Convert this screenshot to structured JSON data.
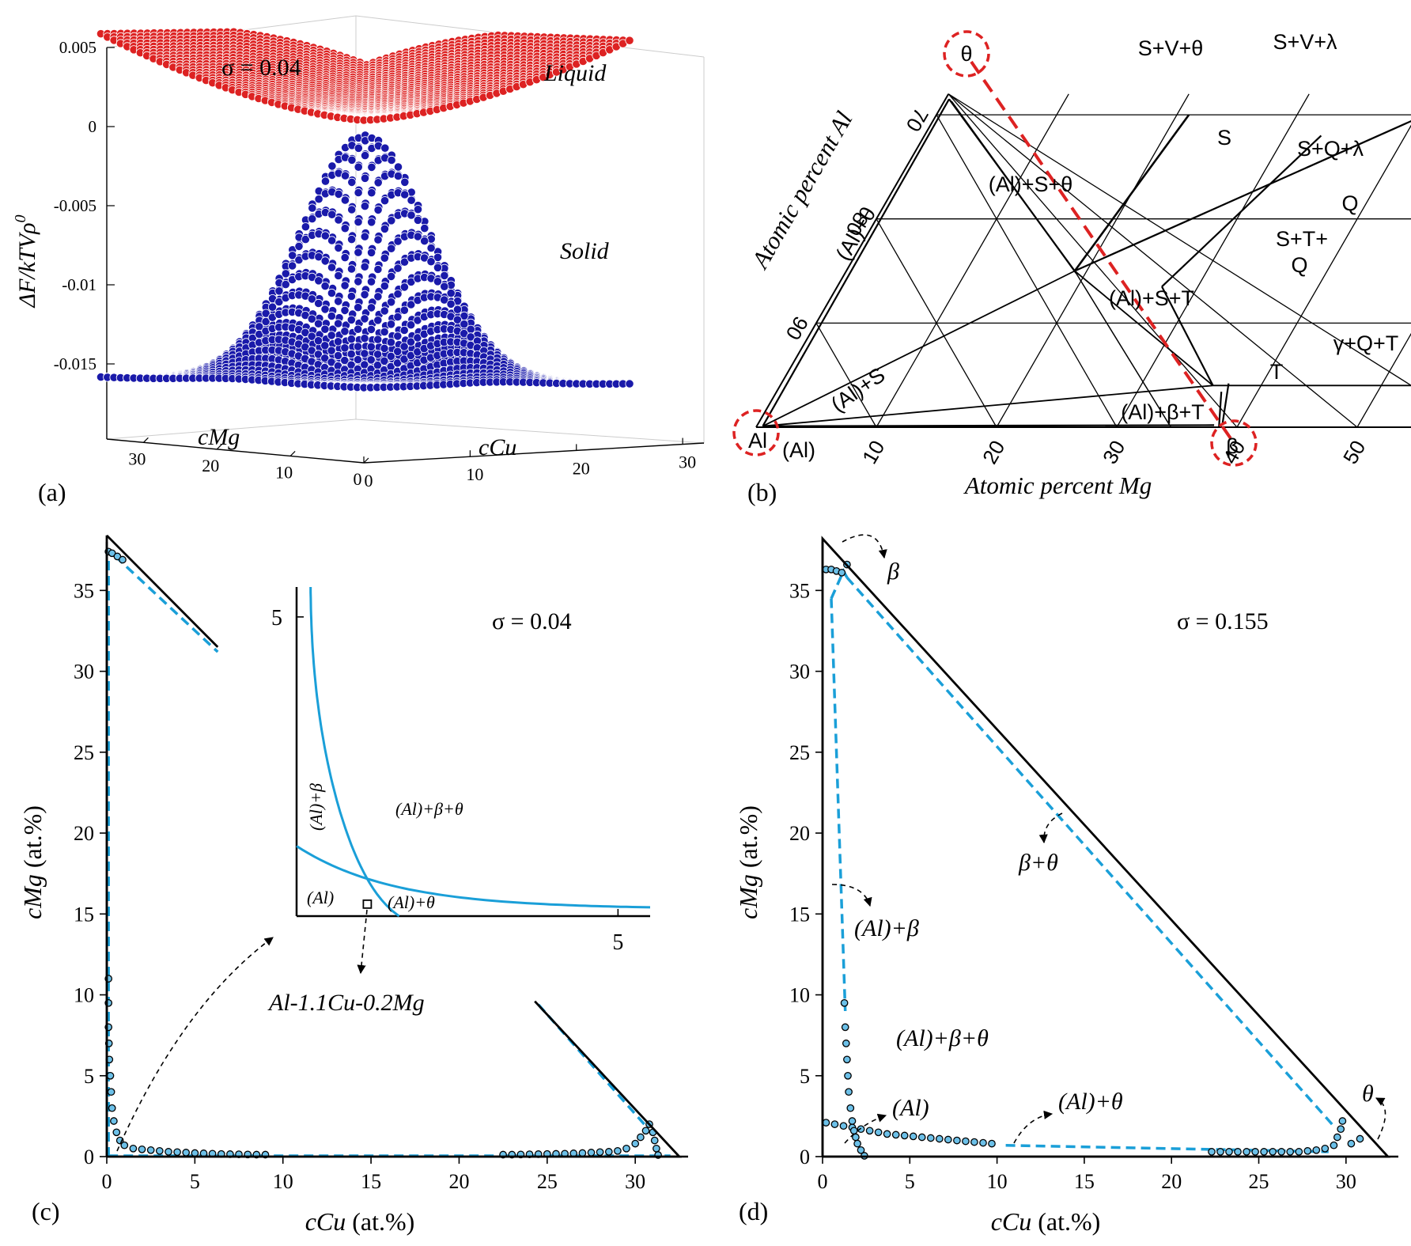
{
  "panels": {
    "a": {
      "label": "(a)"
    },
    "b": {
      "label": "(b)"
    },
    "c": {
      "label": "(c)"
    },
    "d": {
      "label": "(d)"
    }
  },
  "chart_data": [
    {
      "panel": "a",
      "type": "surface-3d",
      "zlabel": "ΔF/kTVρ",
      "zlabel_sup": "0",
      "xlabel": "cCu",
      "ylabel": "cMg",
      "z_ticks": [
        "0.005",
        "0",
        "-0.005",
        "-0.01",
        "-0.015"
      ],
      "z_tick_values": [
        0.005,
        0,
        -0.005,
        -0.01,
        -0.015
      ],
      "cu_ticks": [
        "0",
        "10",
        "20",
        "30"
      ],
      "mg_ticks": [
        "30",
        "20",
        "10",
        "0"
      ],
      "sigma_label": "σ = 0.04",
      "series": [
        {
          "name": "Liquid",
          "color": "#dd2222",
          "corner_values": {
            "cu0_mg0": 0.0,
            "cu32_mg0": 0.0046,
            "cu0_mg35": 0.0051,
            "peak": 0.003
          }
        },
        {
          "name": "Solid",
          "color": "#1a1aaa",
          "corner_values": {
            "cu0_mg0": -0.0175,
            "cu32_mg0": -0.0154,
            "cu0_mg35": -0.0151,
            "center": -0.0015
          }
        }
      ]
    },
    {
      "panel": "b",
      "type": "ternary-phase-diagram",
      "xlabel": "Atomic percent Mg",
      "ylabel": "Atomic percent Al",
      "mg_ticks": [
        "10",
        "20",
        "30",
        "40",
        "50"
      ],
      "al_ticks": [
        "70",
        "80",
        "90"
      ],
      "region_labels": [
        "S+V+θ",
        "S+V+λ",
        "S",
        "S+Q+λ",
        "(Al)+S+θ",
        "Q",
        "S+T+",
        "Q",
        "(Al)+S+T",
        "γ+Q+T",
        "T",
        "(Al)+S",
        "(Al)+β+T",
        "(Al)+θ",
        "(Al)"
      ],
      "points": [
        "θ",
        "Al",
        "β"
      ],
      "highlight_color": "#dd2222"
    },
    {
      "panel": "c",
      "type": "line",
      "xlabel": "cCu",
      "xlabel_unit": " (at.%)",
      "ylabel": "cMg",
      "ylabel_unit": " (at.%)",
      "xlim": [
        0,
        33
      ],
      "ylim": [
        0,
        38
      ],
      "x_ticks": [
        0,
        5,
        10,
        15,
        20,
        25,
        30
      ],
      "y_ticks": [
        0,
        5,
        10,
        15,
        20,
        25,
        30,
        35
      ],
      "sigma_label": "σ = 0.04",
      "series": [
        {
          "style": "dashed",
          "color": "#1a9fd8",
          "x": [
            0.1,
            0.1
          ],
          "y": [
            0,
            37
          ]
        },
        {
          "style": "dashed",
          "color": "#1a9fd8",
          "x": [
            0.1,
            32
          ],
          "y": [
            0.05,
            0.05
          ]
        },
        {
          "style": "dashed",
          "color": "#1a9fd8",
          "x": [
            0.5,
            6.3
          ],
          "y": [
            37.1,
            31.2
          ]
        },
        {
          "style": "dashed",
          "color": "#1a9fd8",
          "x": [
            24.5,
            30.6
          ],
          "y": [
            9.4,
            1.9
          ]
        },
        {
          "style": "markers",
          "color": "#6cc0e8",
          "x": [
            0.1,
            0.1,
            0.1,
            0.12,
            0.15,
            0.2,
            0.25,
            0.3,
            0.4,
            0.55,
            0.75,
            1.0,
            1.5,
            2.0,
            2.5,
            3.0,
            3.5,
            4.0,
            4.5,
            5.0,
            5.5,
            6.0,
            6.5,
            7.0,
            7.5,
            8.0,
            8.5,
            9.0,
            22.5,
            23.0,
            23.5,
            24.0,
            24.5,
            25.0,
            25.5,
            26.0,
            26.5,
            27.0,
            27.5,
            28.0,
            28.5,
            29.0,
            29.5,
            30.0,
            30.3,
            30.6,
            30.8,
            31.0,
            31.1,
            31.2,
            31.3,
            0.1,
            0.3,
            0.6,
            0.9
          ],
          "y": [
            11.0,
            9.5,
            8.0,
            7.0,
            6.0,
            5.0,
            4.0,
            3.0,
            2.2,
            1.5,
            1.0,
            0.7,
            0.5,
            0.45,
            0.4,
            0.35,
            0.3,
            0.28,
            0.25,
            0.22,
            0.2,
            0.18,
            0.16,
            0.15,
            0.14,
            0.13,
            0.12,
            0.12,
            0.12,
            0.12,
            0.13,
            0.14,
            0.15,
            0.16,
            0.17,
            0.18,
            0.2,
            0.22,
            0.25,
            0.28,
            0.3,
            0.35,
            0.5,
            0.8,
            1.2,
            1.6,
            2.0,
            1.5,
            1.0,
            0.5,
            0.1,
            37.4,
            37.3,
            37.1,
            36.9
          ]
        },
        {
          "style": "bounds",
          "color": "#000000"
        }
      ],
      "inset": {
        "xlim": [
          0,
          5.5
        ],
        "ylim": [
          0,
          5.5
        ],
        "x_tick": "5",
        "y_tick": "5",
        "regions": [
          "(Al)+β",
          "(Al)+β+θ",
          "(Al)",
          "(Al)+θ"
        ],
        "alloy": "Al-1.1Cu-0.2Mg",
        "alloy_point": [
          1.1,
          0.2
        ]
      }
    },
    {
      "panel": "d",
      "type": "line",
      "xlabel": "cCu",
      "xlabel_unit": " (at.%)",
      "ylabel": "cMg",
      "ylabel_unit": " (at.%)",
      "xlim": [
        0,
        33
      ],
      "ylim": [
        0,
        38
      ],
      "x_ticks": [
        0,
        5,
        10,
        15,
        20,
        25,
        30
      ],
      "y_ticks": [
        0,
        5,
        10,
        15,
        20,
        25,
        30,
        35
      ],
      "sigma_label": "σ = 0.155",
      "region_labels": [
        "β",
        "β+θ",
        "(Al)+β",
        "(Al)+β+θ",
        "(Al)",
        "(Al)+θ",
        "θ"
      ],
      "series": [
        {
          "style": "dashed",
          "color": "#1a9fd8",
          "x": [
            0.5,
            1.2,
            1.4
          ],
          "y": [
            34.5,
            36.2,
            35.8
          ]
        },
        {
          "style": "dashed",
          "color": "#1a9fd8",
          "x": [
            1.4,
            29.2
          ],
          "y": [
            35.8,
            2.0
          ]
        },
        {
          "style": "dashed",
          "color": "#1a9fd8",
          "x": [
            0.5,
            1.3
          ],
          "y": [
            34.5,
            9.0
          ]
        },
        {
          "style": "dashed",
          "color": "#1a9fd8",
          "x": [
            10.5,
            29.0
          ],
          "y": [
            0.7,
            0.3
          ]
        },
        {
          "style": "markers",
          "color": "#6cc0e8",
          "x": [
            0.2,
            0.7,
            1.2,
            1.7,
            2.2,
            2.7,
            3.2,
            3.7,
            4.2,
            4.7,
            5.2,
            5.7,
            6.2,
            6.7,
            7.2,
            7.7,
            8.2,
            8.7,
            9.2,
            9.7,
            1.25,
            1.3,
            1.35,
            1.4,
            1.45,
            1.5,
            1.6,
            1.7,
            1.8,
            1.9,
            2.0,
            2.2,
            2.4,
            22.3,
            22.8,
            23.3,
            23.8,
            24.3,
            24.8,
            25.3,
            25.8,
            26.3,
            26.8,
            27.3,
            27.8,
            28.3,
            28.8,
            29.3,
            29.5,
            29.7,
            29.8,
            30.3,
            30.8,
            0.2,
            0.5,
            0.8,
            1.1,
            1.4
          ],
          "y": [
            2.1,
            2.0,
            1.9,
            1.8,
            1.7,
            1.6,
            1.5,
            1.4,
            1.35,
            1.3,
            1.25,
            1.2,
            1.15,
            1.1,
            1.05,
            1.0,
            0.95,
            0.9,
            0.85,
            0.8,
            9.5,
            8.0,
            7.0,
            6.0,
            5.0,
            4.0,
            3.0,
            2.2,
            1.6,
            1.2,
            0.8,
            0.4,
            0.05,
            0.3,
            0.3,
            0.3,
            0.3,
            0.3,
            0.3,
            0.3,
            0.3,
            0.3,
            0.3,
            0.3,
            0.35,
            0.4,
            0.5,
            0.7,
            1.2,
            1.7,
            2.2,
            0.8,
            1.1,
            36.3,
            36.3,
            36.2,
            36.1,
            36.6
          ]
        },
        {
          "style": "bounds",
          "color": "#000000"
        }
      ]
    }
  ]
}
